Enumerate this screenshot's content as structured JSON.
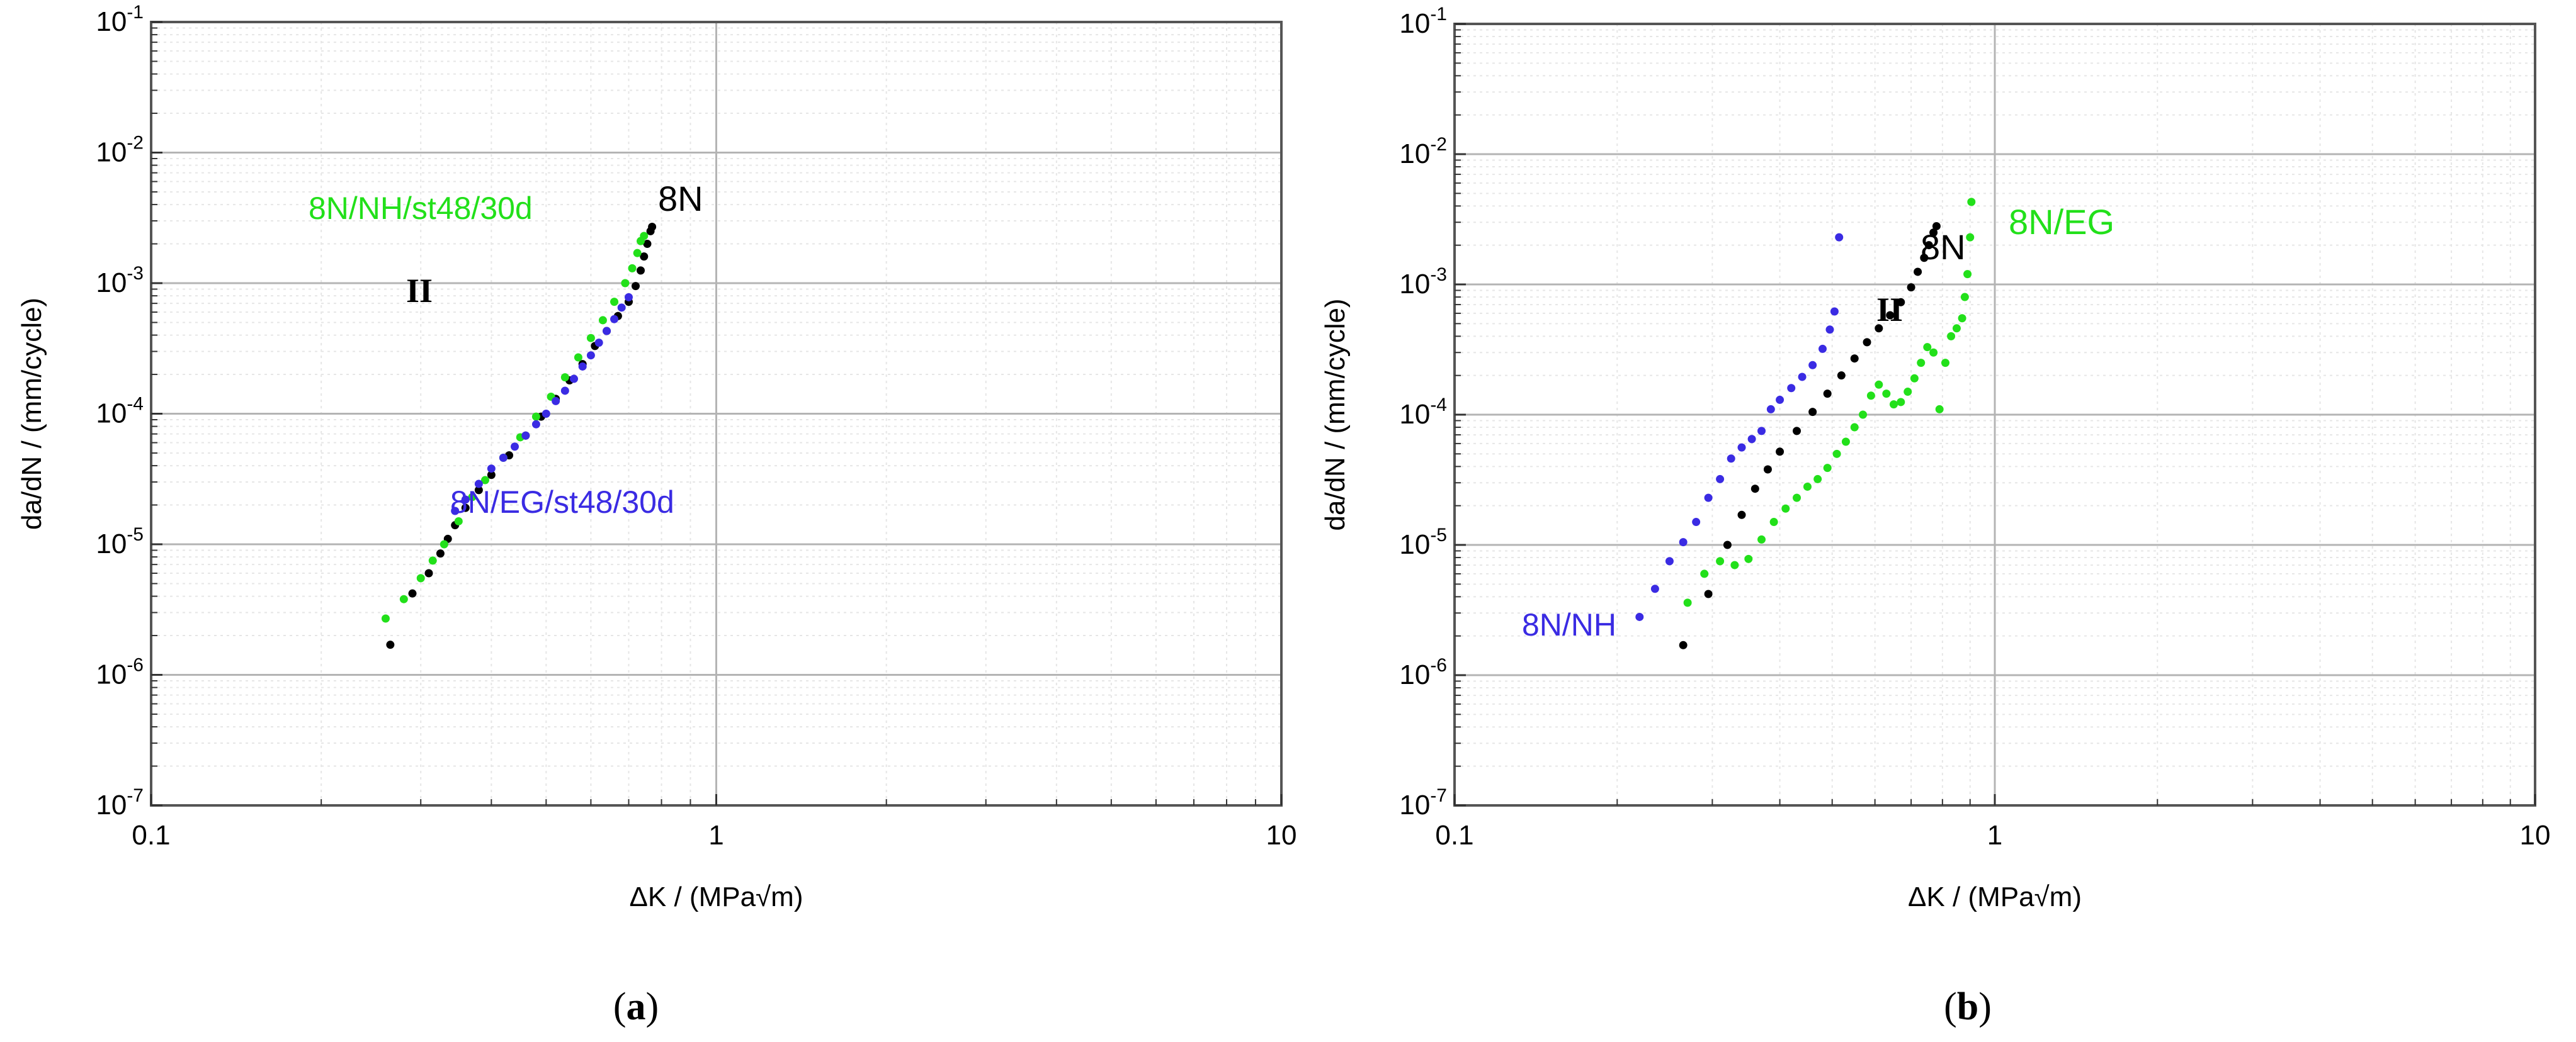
{
  "chart_data": [
    {
      "type": "scatter",
      "title": "",
      "caption": "(a)",
      "xlabel": "ΔK / (MPa√m)",
      "ylabel": "da/dN / (mm/cycle)",
      "xscale": "log",
      "yscale": "log",
      "xlim": [
        0.1,
        10
      ],
      "ylim": [
        1e-07,
        0.1
      ],
      "x_ticks": [
        "0.1",
        "1",
        "10"
      ],
      "y_ticks": [
        "10-7",
        "10-6",
        "10-5",
        "10-4",
        "10-3",
        "10-2",
        "10-1"
      ],
      "grid": true,
      "region_label": "II",
      "series": [
        {
          "name": "8N",
          "color": "#000000",
          "points": [
            [
              0.265,
              1.7e-06
            ],
            [
              0.29,
              4.2e-06
            ],
            [
              0.31,
              6e-06
            ],
            [
              0.325,
              8.5e-06
            ],
            [
              0.335,
              1.1e-05
            ],
            [
              0.345,
              1.4e-05
            ],
            [
              0.36,
              1.9e-05
            ],
            [
              0.38,
              2.6e-05
            ],
            [
              0.4,
              3.4e-05
            ],
            [
              0.43,
              4.8e-05
            ],
            [
              0.46,
              6.8e-05
            ],
            [
              0.49,
              9.5e-05
            ],
            [
              0.52,
              0.00013
            ],
            [
              0.55,
              0.00018
            ],
            [
              0.58,
              0.00024
            ],
            [
              0.61,
              0.00033
            ],
            [
              0.64,
              0.00043
            ],
            [
              0.67,
              0.00056
            ],
            [
              0.7,
              0.00072
            ],
            [
              0.72,
              0.00095
            ],
            [
              0.735,
              0.00125
            ],
            [
              0.745,
              0.0016
            ],
            [
              0.755,
              0.002
            ],
            [
              0.765,
              0.0025
            ],
            [
              0.77,
              0.0027
            ]
          ]
        },
        {
          "name": "8N/NH/st48/30d",
          "color": "#22e01a",
          "points": [
            [
              0.26,
              2.7e-06
            ],
            [
              0.28,
              3.8e-06
            ],
            [
              0.3,
              5.5e-06
            ],
            [
              0.315,
              7.5e-06
            ],
            [
              0.33,
              1e-05
            ],
            [
              0.35,
              1.5e-05
            ],
            [
              0.37,
              2.3e-05
            ],
            [
              0.39,
              3.1e-05
            ],
            [
              0.42,
              4.6e-05
            ],
            [
              0.45,
              6.6e-05
            ],
            [
              0.48,
              9.5e-05
            ],
            [
              0.51,
              0.000135
            ],
            [
              0.54,
              0.00019
            ],
            [
              0.57,
              0.00027
            ],
            [
              0.6,
              0.00038
            ],
            [
              0.63,
              0.00052
            ],
            [
              0.66,
              0.00072
            ],
            [
              0.69,
              0.001
            ],
            [
              0.71,
              0.0013
            ],
            [
              0.725,
              0.0017
            ],
            [
              0.735,
              0.0021
            ],
            [
              0.745,
              0.0023
            ]
          ]
        },
        {
          "name": "8N/EG/st48/30d",
          "color": "#3a2be3",
          "points": [
            [
              0.345,
              1.8e-05
            ],
            [
              0.36,
              2.2e-05
            ],
            [
              0.38,
              2.9e-05
            ],
            [
              0.4,
              3.8e-05
            ],
            [
              0.42,
              4.6e-05
            ],
            [
              0.44,
              5.6e-05
            ],
            [
              0.46,
              6.8e-05
            ],
            [
              0.48,
              8.3e-05
            ],
            [
              0.5,
              0.0001
            ],
            [
              0.52,
              0.000125
            ],
            [
              0.54,
              0.00015
            ],
            [
              0.56,
              0.000185
            ],
            [
              0.58,
              0.00023
            ],
            [
              0.6,
              0.00028
            ],
            [
              0.62,
              0.00035
            ],
            [
              0.64,
              0.00043
            ],
            [
              0.66,
              0.00053
            ],
            [
              0.68,
              0.00065
            ],
            [
              0.7,
              0.00078
            ]
          ]
        }
      ],
      "annotations": [
        {
          "text": "8N/NH/st48/30d",
          "color": "#22e01a"
        },
        {
          "text": "8N",
          "color": "#000000"
        },
        {
          "text": "8N/EG/st48/30d",
          "color": "#3a2be3"
        }
      ]
    },
    {
      "type": "scatter",
      "title": "",
      "caption": "(b)",
      "xlabel": "ΔK / (MPa√m)",
      "ylabel": "da/dN / (mm/cycle)",
      "xscale": "log",
      "yscale": "log",
      "xlim": [
        0.1,
        10
      ],
      "ylim": [
        1e-07,
        0.1
      ],
      "x_ticks": [
        "0.1",
        "1",
        "10"
      ],
      "y_ticks": [
        "10-7",
        "10-6",
        "10-5",
        "10-4",
        "10-3",
        "10-2",
        "10-1"
      ],
      "grid": true,
      "region_label": "II",
      "series": [
        {
          "name": "8N",
          "color": "#000000",
          "points": [
            [
              0.265,
              1.7e-06
            ],
            [
              0.295,
              4.2e-06
            ],
            [
              0.32,
              1e-05
            ],
            [
              0.34,
              1.7e-05
            ],
            [
              0.36,
              2.7e-05
            ],
            [
              0.38,
              3.8e-05
            ],
            [
              0.4,
              5.2e-05
            ],
            [
              0.43,
              7.5e-05
            ],
            [
              0.46,
              0.000105
            ],
            [
              0.49,
              0.000145
            ],
            [
              0.52,
              0.0002
            ],
            [
              0.55,
              0.00027
            ],
            [
              0.58,
              0.00036
            ],
            [
              0.61,
              0.00046
            ],
            [
              0.64,
              0.00058
            ],
            [
              0.67,
              0.00073
            ],
            [
              0.7,
              0.00095
            ],
            [
              0.72,
              0.00125
            ],
            [
              0.74,
              0.0016
            ],
            [
              0.755,
              0.002
            ],
            [
              0.77,
              0.0025
            ],
            [
              0.78,
              0.0028
            ]
          ]
        },
        {
          "name": "8N/NH",
          "color": "#3a2be3",
          "points": [
            [
              0.22,
              2.8e-06
            ],
            [
              0.235,
              4.6e-06
            ],
            [
              0.25,
              7.5e-06
            ],
            [
              0.265,
              1.05e-05
            ],
            [
              0.28,
              1.5e-05
            ],
            [
              0.295,
              2.3e-05
            ],
            [
              0.31,
              3.2e-05
            ],
            [
              0.325,
              4.6e-05
            ],
            [
              0.34,
              5.6e-05
            ],
            [
              0.355,
              6.5e-05
            ],
            [
              0.37,
              7.5e-05
            ],
            [
              0.385,
              0.00011
            ],
            [
              0.4,
              0.00013
            ],
            [
              0.42,
              0.00016
            ],
            [
              0.44,
              0.000195
            ],
            [
              0.46,
              0.00024
            ],
            [
              0.48,
              0.00032
            ],
            [
              0.495,
              0.00045
            ],
            [
              0.505,
              0.00062
            ],
            [
              0.515,
              0.0023
            ]
          ]
        },
        {
          "name": "8N/EG",
          "color": "#22e01a",
          "points": [
            [
              0.27,
              3.6e-06
            ],
            [
              0.29,
              6e-06
            ],
            [
              0.31,
              7.5e-06
            ],
            [
              0.33,
              7e-06
            ],
            [
              0.35,
              7.8e-06
            ],
            [
              0.37,
              1.1e-05
            ],
            [
              0.39,
              1.5e-05
            ],
            [
              0.41,
              1.9e-05
            ],
            [
              0.43,
              2.3e-05
            ],
            [
              0.45,
              2.8e-05
            ],
            [
              0.47,
              3.2e-05
            ],
            [
              0.49,
              3.9e-05
            ],
            [
              0.51,
              5e-05
            ],
            [
              0.53,
              6.2e-05
            ],
            [
              0.55,
              8e-05
            ],
            [
              0.57,
              0.0001
            ],
            [
              0.59,
              0.00014
            ],
            [
              0.61,
              0.00017
            ],
            [
              0.63,
              0.000145
            ],
            [
              0.65,
              0.00012
            ],
            [
              0.67,
              0.000125
            ],
            [
              0.69,
              0.00015
            ],
            [
              0.71,
              0.00019
            ],
            [
              0.73,
              0.00025
            ],
            [
              0.75,
              0.00033
            ],
            [
              0.77,
              0.0003
            ],
            [
              0.79,
              0.00011
            ],
            [
              0.81,
              0.00025
            ],
            [
              0.83,
              0.0004
            ],
            [
              0.85,
              0.00046
            ],
            [
              0.87,
              0.00055
            ],
            [
              0.88,
              0.0008
            ],
            [
              0.89,
              0.0012
            ],
            [
              0.9,
              0.0023
            ],
            [
              0.905,
              0.0043
            ]
          ]
        }
      ],
      "annotations": [
        {
          "text": "8N",
          "color": "#000000"
        },
        {
          "text": "8N/EG",
          "color": "#22e01a"
        },
        {
          "text": "8N/NH",
          "color": "#3a2be3"
        }
      ]
    }
  ]
}
